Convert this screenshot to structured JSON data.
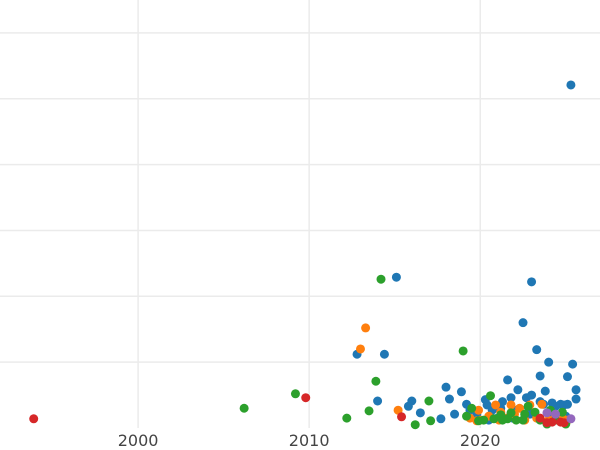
{
  "chart_data": {
    "type": "scatter",
    "title": "",
    "xlabel": "",
    "ylabel": "",
    "xlim": [
      1991.93,
      2027.0
    ],
    "ylim": [
      0,
      6.5
    ],
    "x_ticks": [
      "2000",
      "2010",
      "2020"
    ],
    "x_tick_values": [
      2000,
      2010,
      2020
    ],
    "y_grid_values": [
      1,
      2,
      3,
      4,
      5,
      6
    ],
    "grid": true,
    "series": [
      {
        "color": "#1f77b4",
        "points": [
          [
            2025.3,
            5.21
          ],
          [
            2015.1,
            2.29
          ],
          [
            2023.0,
            2.22
          ],
          [
            2022.5,
            1.6
          ],
          [
            2012.8,
            1.12
          ],
          [
            2014.4,
            1.12
          ],
          [
            2023.3,
            1.19
          ],
          [
            2025.4,
            0.97
          ],
          [
            2024.0,
            1.0
          ],
          [
            2025.1,
            0.78
          ],
          [
            2023.5,
            0.79
          ],
          [
            2018.0,
            0.62
          ],
          [
            2018.9,
            0.55
          ],
          [
            2014.0,
            0.41
          ],
          [
            2016.0,
            0.41
          ],
          [
            2015.8,
            0.33
          ],
          [
            2016.5,
            0.23
          ],
          [
            2017.7,
            0.14
          ],
          [
            2018.5,
            0.21
          ],
          [
            2018.2,
            0.44
          ],
          [
            2020.3,
            0.43
          ],
          [
            2021.6,
            0.73
          ],
          [
            2023.8,
            0.56
          ],
          [
            2025.6,
            0.58
          ],
          [
            2025.6,
            0.44
          ],
          [
            2019.2,
            0.36
          ],
          [
            2019.4,
            0.27
          ],
          [
            2019.8,
            0.2
          ],
          [
            2020.4,
            0.35
          ],
          [
            2020.7,
            0.27
          ],
          [
            2021.0,
            0.15
          ],
          [
            2021.3,
            0.4
          ],
          [
            2021.8,
            0.46
          ],
          [
            2022.0,
            0.27
          ],
          [
            2022.2,
            0.58
          ],
          [
            2022.7,
            0.46
          ],
          [
            2022.8,
            0.32
          ],
          [
            2023.0,
            0.5
          ],
          [
            2023.5,
            0.4
          ],
          [
            2023.7,
            0.36
          ],
          [
            2024.2,
            0.38
          ],
          [
            2024.4,
            0.33
          ],
          [
            2024.7,
            0.36
          ],
          [
            2024.9,
            0.35
          ],
          [
            2025.1,
            0.36
          ],
          [
            2021.9,
            0.15
          ],
          [
            2022.9,
            0.21
          ],
          [
            2024.1,
            0.21
          ],
          [
            2025.0,
            0.18
          ],
          [
            2020.5,
            0.12
          ],
          [
            2021.2,
            0.3
          ]
        ]
      },
      {
        "color": "#ff7f0e",
        "points": [
          [
            2013.0,
            1.2
          ],
          [
            2013.3,
            1.52
          ],
          [
            2015.2,
            0.27
          ],
          [
            2019.4,
            0.15
          ],
          [
            2019.9,
            0.27
          ],
          [
            2020.0,
            0.12
          ],
          [
            2020.5,
            0.18
          ],
          [
            2020.9,
            0.35
          ],
          [
            2021.2,
            0.24
          ],
          [
            2021.5,
            0.15
          ],
          [
            2021.8,
            0.35
          ],
          [
            2022.0,
            0.21
          ],
          [
            2022.3,
            0.3
          ],
          [
            2022.6,
            0.12
          ],
          [
            2022.9,
            0.35
          ],
          [
            2023.3,
            0.15
          ],
          [
            2023.6,
            0.36
          ],
          [
            2024.0,
            0.12
          ],
          [
            2024.4,
            0.18
          ],
          [
            2024.8,
            0.15
          ],
          [
            2025.1,
            0.12
          ],
          [
            2021.1,
            0.12
          ],
          [
            2019.8,
            0.11
          ]
        ]
      },
      {
        "color": "#2ca02c",
        "points": [
          [
            2006.2,
            0.3
          ],
          [
            2009.2,
            0.52
          ],
          [
            2012.2,
            0.15
          ],
          [
            2013.5,
            0.26
          ],
          [
            2014.2,
            2.26
          ],
          [
            2013.9,
            0.71
          ],
          [
            2016.2,
            0.05
          ],
          [
            2017.0,
            0.41
          ],
          [
            2017.1,
            0.11
          ],
          [
            2019.0,
            1.17
          ],
          [
            2020.6,
            0.49
          ],
          [
            2019.2,
            0.18
          ],
          [
            2019.5,
            0.3
          ],
          [
            2019.9,
            0.11
          ],
          [
            2020.2,
            0.12
          ],
          [
            2020.8,
            0.14
          ],
          [
            2021.3,
            0.12
          ],
          [
            2021.6,
            0.14
          ],
          [
            2021.8,
            0.23
          ],
          [
            2022.1,
            0.12
          ],
          [
            2022.5,
            0.12
          ],
          [
            2022.6,
            0.21
          ],
          [
            2022.8,
            0.33
          ],
          [
            2023.2,
            0.24
          ],
          [
            2023.5,
            0.12
          ],
          [
            2023.9,
            0.06
          ],
          [
            2024.1,
            0.27
          ],
          [
            2024.4,
            0.12
          ],
          [
            2024.8,
            0.24
          ],
          [
            2025.0,
            0.06
          ],
          [
            2021.2,
            0.2
          ]
        ]
      },
      {
        "color": "#d62728",
        "points": [
          [
            1993.9,
            0.14
          ],
          [
            2009.8,
            0.46
          ],
          [
            2015.4,
            0.17
          ],
          [
            2023.5,
            0.15
          ],
          [
            2023.9,
            0.08
          ],
          [
            2024.2,
            0.09
          ],
          [
            2024.7,
            0.09
          ],
          [
            2024.9,
            0.08
          ]
        ]
      },
      {
        "color": "#9467bd",
        "points": [
          [
            2023.9,
            0.23
          ],
          [
            2025.3,
            0.14
          ],
          [
            2024.4,
            0.21
          ]
        ]
      }
    ]
  }
}
